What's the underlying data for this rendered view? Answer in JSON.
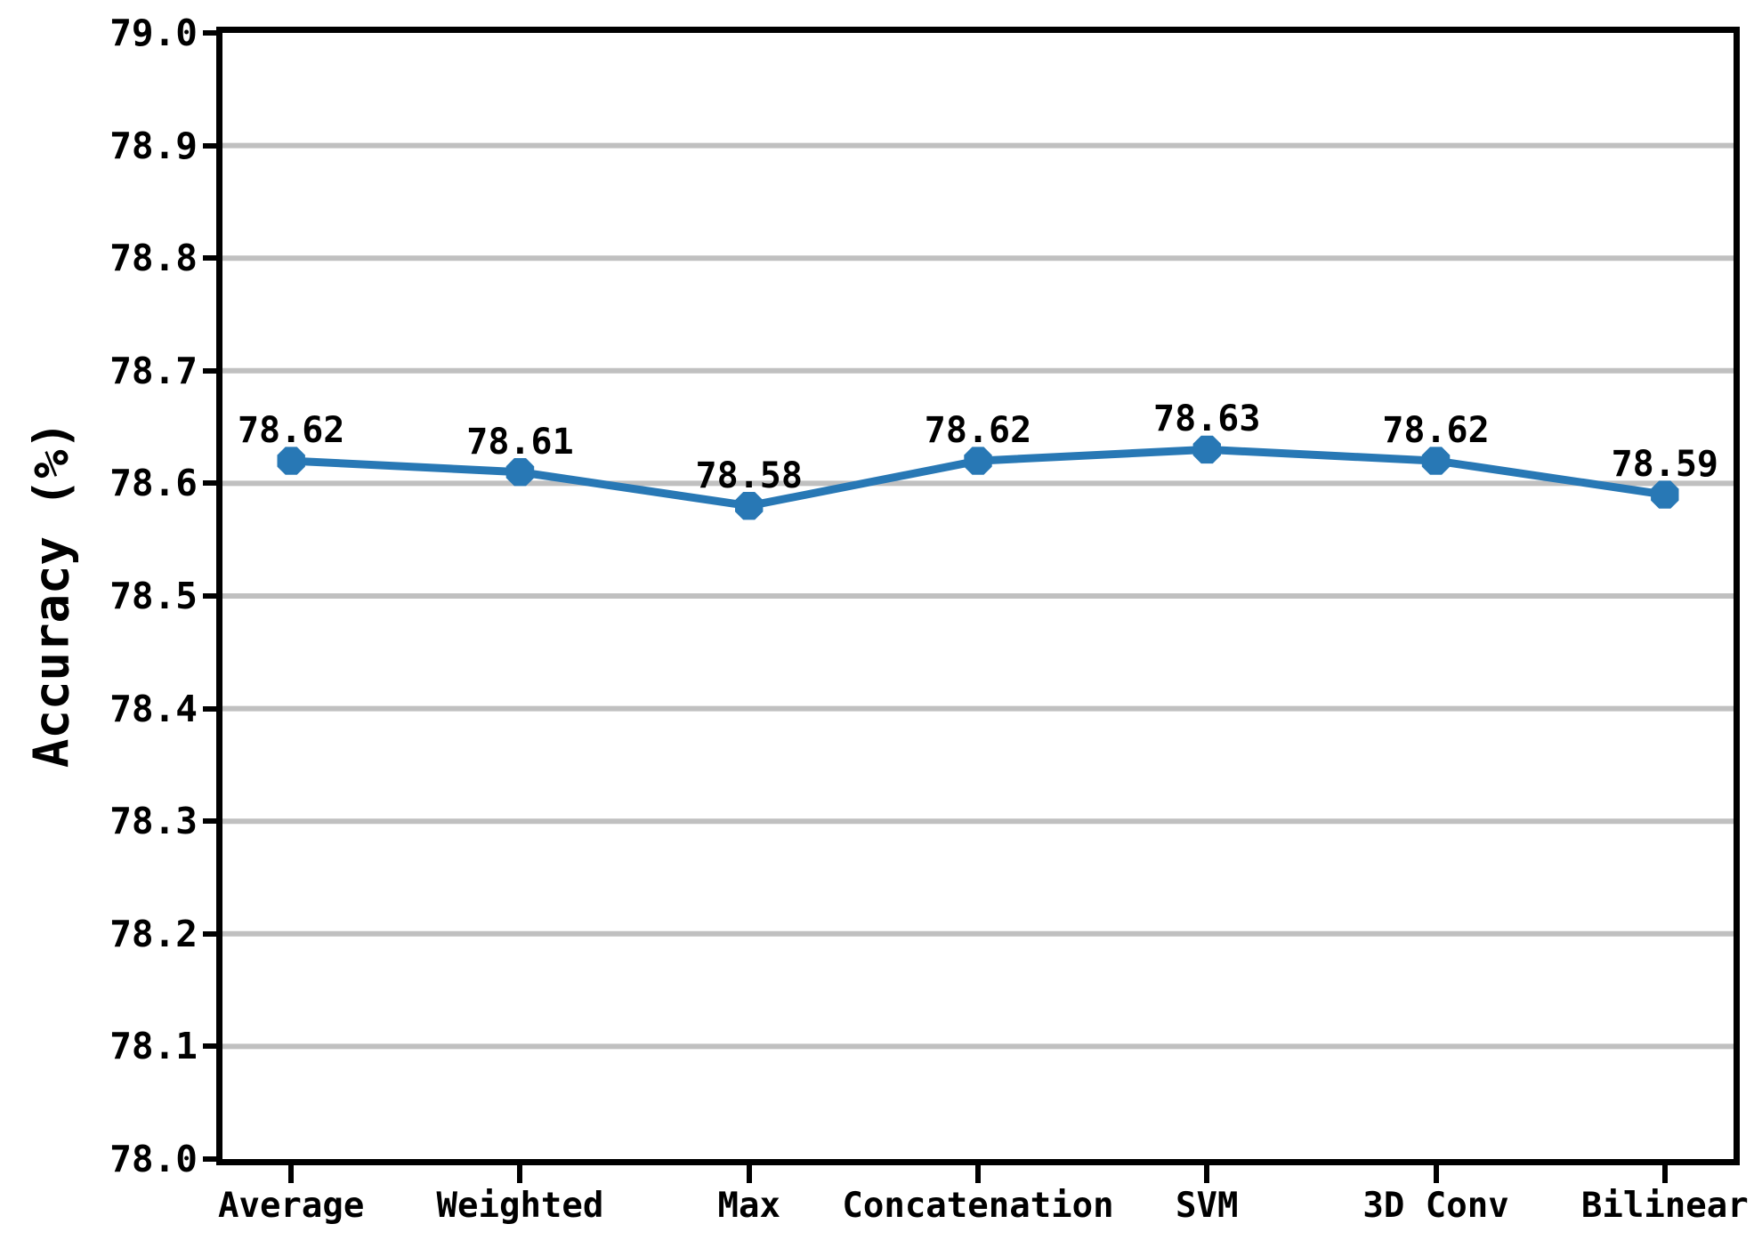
{
  "figure": {
    "background_color": "#ffffff",
    "ylabel": "Accuracy (%)"
  },
  "chart_data": {
    "type": "line",
    "title": "",
    "xlabel": "",
    "ylabel": "Accuracy (%)",
    "categories": [
      "Average",
      "Weighted",
      "Max",
      "Concatenation",
      "SVM",
      "3D Conv",
      "Bilinear"
    ],
    "series": [
      {
        "name": "Accuracy",
        "values": [
          78.62,
          78.61,
          78.58,
          78.62,
          78.63,
          78.62,
          78.59
        ],
        "point_labels": [
          "78.62",
          "78.61",
          "78.58",
          "78.62",
          "78.63",
          "78.62",
          "78.59"
        ]
      }
    ],
    "ylim": [
      78.0,
      79.0
    ],
    "y_ticks": [
      78.0,
      78.1,
      78.2,
      78.3,
      78.4,
      78.5,
      78.6,
      78.7,
      78.8,
      78.9,
      79.0
    ],
    "y_tick_labels": [
      "78.0",
      "78.1",
      "78.2",
      "78.3",
      "78.4",
      "78.5",
      "78.6",
      "78.7",
      "78.8",
      "78.9",
      "79.0"
    ],
    "grid": true,
    "grid_axis": "y",
    "grid_color": "#c0c0c0",
    "line_color": "#2878b5",
    "marker": "octagon",
    "marker_color": "#2878b5",
    "spine_color": "#000000",
    "legend": null
  }
}
